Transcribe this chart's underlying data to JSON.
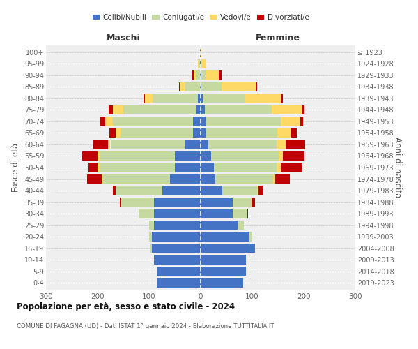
{
  "age_groups": [
    "0-4",
    "5-9",
    "10-14",
    "15-19",
    "20-24",
    "25-29",
    "30-34",
    "35-39",
    "40-44",
    "45-49",
    "50-54",
    "55-59",
    "60-64",
    "65-69",
    "70-74",
    "75-79",
    "80-84",
    "85-89",
    "90-94",
    "95-99",
    "100+"
  ],
  "birth_years": [
    "2019-2023",
    "2014-2018",
    "2009-2013",
    "2004-2008",
    "1999-2003",
    "1994-1998",
    "1989-1993",
    "1984-1988",
    "1979-1983",
    "1974-1978",
    "1969-1973",
    "1964-1968",
    "1959-1963",
    "1954-1958",
    "1949-1953",
    "1944-1948",
    "1939-1943",
    "1934-1938",
    "1929-1933",
    "1924-1928",
    "≤ 1923"
  ],
  "colors": {
    "celibe": "#4472c4",
    "coniugato": "#c5d9a0",
    "vedovo": "#ffd966",
    "divorziato": "#c00000"
  },
  "maschi": {
    "celibe": [
      85,
      85,
      90,
      95,
      95,
      90,
      90,
      90,
      75,
      60,
      50,
      50,
      30,
      15,
      15,
      10,
      5,
      2,
      1,
      1,
      1
    ],
    "coniugato": [
      0,
      0,
      0,
      2,
      5,
      10,
      30,
      65,
      90,
      130,
      145,
      145,
      145,
      140,
      155,
      140,
      88,
      28,
      8,
      2,
      0
    ],
    "vedovo": [
      0,
      0,
      0,
      0,
      0,
      0,
      0,
      0,
      0,
      2,
      5,
      5,
      5,
      10,
      15,
      20,
      15,
      10,
      5,
      2,
      0
    ],
    "divorziato": [
      0,
      0,
      0,
      0,
      0,
      0,
      0,
      2,
      5,
      28,
      18,
      30,
      28,
      12,
      10,
      8,
      3,
      2,
      2,
      0,
      0
    ]
  },
  "femmine": {
    "nubile": [
      82,
      88,
      88,
      105,
      95,
      72,
      62,
      62,
      42,
      28,
      25,
      20,
      15,
      10,
      10,
      8,
      5,
      2,
      2,
      0,
      0
    ],
    "coniugata": [
      0,
      0,
      0,
      0,
      5,
      12,
      28,
      38,
      68,
      112,
      122,
      132,
      132,
      138,
      145,
      130,
      82,
      38,
      8,
      2,
      0
    ],
    "vedova": [
      0,
      0,
      0,
      0,
      0,
      0,
      0,
      0,
      2,
      5,
      8,
      8,
      18,
      28,
      38,
      58,
      68,
      68,
      25,
      8,
      2
    ],
    "divorziata": [
      0,
      0,
      0,
      0,
      0,
      0,
      2,
      5,
      8,
      28,
      42,
      42,
      38,
      10,
      5,
      5,
      5,
      2,
      5,
      0,
      0
    ]
  },
  "title": "Popolazione per età, sesso e stato civile - 2024",
  "subtitle": "COMUNE DI FAGAGNA (UD) - Dati ISTAT 1° gennaio 2024 - Elaborazione TUTTITALIA.IT",
  "label_maschi": "Maschi",
  "label_femmine": "Femmine",
  "ylabel_left": "Fasce di età",
  "ylabel_right": "Anni di nascita",
  "xlim": 300,
  "legend_labels": [
    "Celibi/Nubili",
    "Coniugati/e",
    "Vedovi/e",
    "Divorziati/e"
  ],
  "bg_color": "#efefef",
  "grid_color": "#d0d0d0"
}
